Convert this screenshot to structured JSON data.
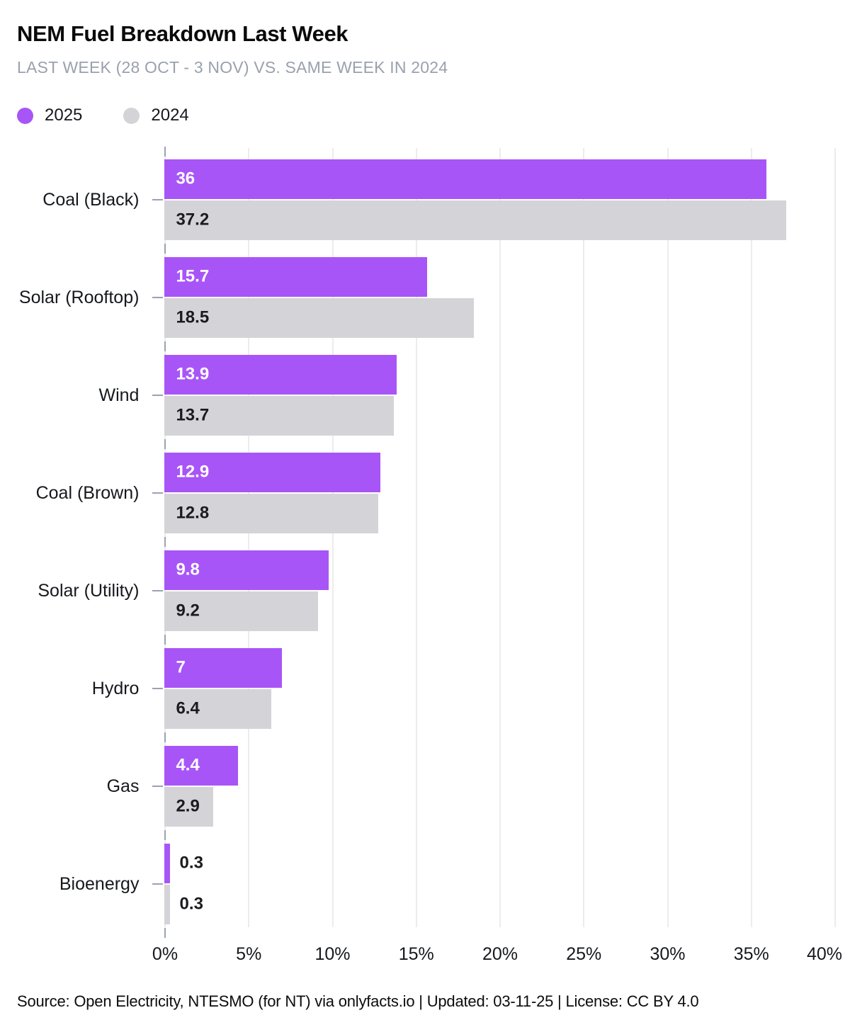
{
  "header": {
    "title": "NEM Fuel Breakdown Last Week",
    "subtitle": "LAST WEEK (28 OCT - 3 NOV) VS. SAME WEEK IN 2024"
  },
  "legend": {
    "items": [
      {
        "label": "2025",
        "color": "#a855f7"
      },
      {
        "label": "2024",
        "color": "#d4d4d8"
      }
    ]
  },
  "chart_data": {
    "type": "bar",
    "orientation": "horizontal",
    "title": "NEM Fuel Breakdown Last Week",
    "subtitle": "LAST WEEK (28 OCT - 3 NOV) VS. SAME WEEK IN 2024",
    "categories": [
      "Coal (Black)",
      "Solar (Rooftop)",
      "Wind",
      "Coal (Brown)",
      "Solar (Utility)",
      "Hydro",
      "Gas",
      "Bioenergy"
    ],
    "series": [
      {
        "name": "2025",
        "color": "#a855f7",
        "label_color": "#ffffff",
        "values": [
          36,
          15.7,
          13.9,
          12.9,
          9.8,
          7,
          4.4,
          0.3
        ]
      },
      {
        "name": "2024",
        "color": "#d4d4d8",
        "label_color": "#1a1b1e",
        "values": [
          37.2,
          18.5,
          13.7,
          12.8,
          9.2,
          6.4,
          2.9,
          0.3
        ]
      }
    ],
    "value_labels": {
      "series_2025": [
        "36",
        "15.7",
        "13.9",
        "12.9",
        "9.8",
        "7",
        "4.4",
        "0.3"
      ],
      "series_2024": [
        "37.2",
        "18.5",
        "13.7",
        "12.8",
        "9.2",
        "6.4",
        "2.9",
        "0.3"
      ]
    },
    "xlabel": "",
    "ylabel": "",
    "xlim": [
      0,
      40
    ],
    "x_ticks": [
      "0%",
      "5%",
      "10%",
      "15%",
      "20%",
      "25%",
      "30%",
      "35%",
      "40%"
    ],
    "grid": true,
    "legend_position": "top-left"
  },
  "footer": {
    "text": "Source: Open Electricity, NTESMO (for NT) via onlyfacts.io | Updated: 03-11-25 | License: CC BY 4.0"
  }
}
